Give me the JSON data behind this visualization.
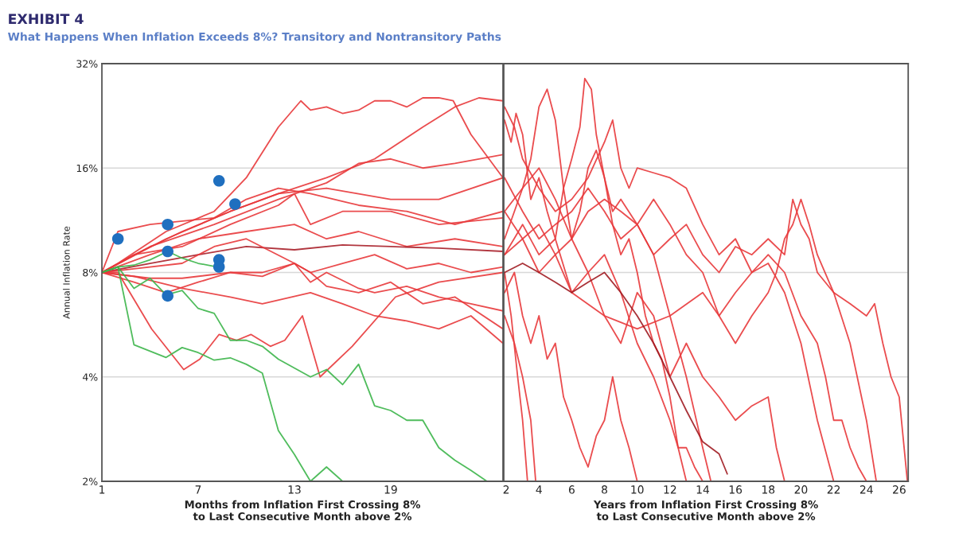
{
  "chart_data": [
    {
      "type": "line",
      "title": "EXHIBIT 4",
      "subtitle": "What Happens When Inflation Exceeds 8%? Transitory and Nontransitory Paths",
      "xlabel": "Months from Inflation First Crossing 8%\nto Last Consecutive Month above 2%",
      "ylabel": "Annual Inflation Rate",
      "log": "y",
      "grid": "y",
      "xlim": [
        1,
        26
      ],
      "xticks": [
        1,
        7,
        13,
        19
      ],
      "ylim": [
        2,
        32
      ],
      "yticks": [
        {
          "value": 2,
          "label": "2%"
        },
        {
          "value": 4,
          "label": "4%"
        },
        {
          "value": 8,
          "label": "8%"
        },
        {
          "value": 16,
          "label": "16%"
        },
        {
          "value": 32,
          "label": "32%"
        }
      ],
      "series": [
        {
          "color": "#e8383b",
          "x": [
            1,
            2,
            5,
            8,
            10,
            12,
            13.4,
            14,
            15,
            16,
            17,
            18,
            19,
            20,
            21,
            22,
            22.9,
            24,
            26
          ],
          "values": [
            8,
            8.5,
            10.5,
            12,
            15,
            21,
            25,
            23.5,
            24,
            23,
            23.5,
            25,
            25,
            24,
            25.5,
            25.5,
            25,
            20,
            15
          ]
        },
        {
          "color": "#e8383b",
          "x": [
            1,
            3,
            6,
            9,
            12,
            15,
            18,
            21,
            23,
            24.5,
            26
          ],
          "values": [
            8,
            9,
            10.5,
            12,
            13.5,
            15,
            17,
            21,
            24,
            25.5,
            25
          ]
        },
        {
          "color": "#e8383b",
          "x": [
            1,
            4,
            8,
            12,
            15,
            17,
            19,
            21,
            23,
            26
          ],
          "values": [
            8,
            9.5,
            11,
            13,
            14.5,
            16.5,
            17,
            16,
            16.5,
            17.5
          ]
        },
        {
          "color": "#e8383b",
          "x": [
            1,
            5,
            9,
            12,
            15,
            19,
            22,
            26
          ],
          "values": [
            8,
            10,
            12,
            13.5,
            14,
            13,
            13,
            15
          ]
        },
        {
          "color": "#e8383b",
          "x": [
            1,
            2,
            4,
            8,
            10,
            12,
            14,
            17,
            20,
            23,
            26
          ],
          "values": [
            8,
            10.5,
            11,
            11.5,
            13,
            14,
            13.5,
            12.5,
            12,
            11,
            12
          ]
        },
        {
          "color": "#e8383b",
          "x": [
            1,
            3,
            6,
            9,
            12,
            13,
            14,
            16,
            19,
            22,
            26
          ],
          "values": [
            8,
            9,
            9.5,
            11,
            12.5,
            13.5,
            11,
            12,
            12,
            11,
            11.5
          ]
        },
        {
          "color": "#e8383b",
          "x": [
            1,
            4,
            7,
            10,
            13,
            15,
            17,
            20,
            23,
            26
          ],
          "values": [
            8,
            9,
            10,
            10.5,
            11,
            10,
            10.5,
            9.5,
            10,
            9.5
          ]
        },
        {
          "color": "#a8202a",
          "x": [
            1,
            4,
            7,
            10,
            13,
            16,
            19,
            22,
            26
          ],
          "values": [
            8,
            8.5,
            9,
            9.5,
            9.3,
            9.6,
            9.5,
            9.4,
            9.2
          ]
        },
        {
          "color": "#e8383b",
          "x": [
            1,
            3,
            6,
            8,
            10,
            13,
            14,
            16,
            18,
            20,
            22,
            24,
            26
          ],
          "values": [
            8,
            8.2,
            8.5,
            9.5,
            10,
            8.5,
            8,
            8.5,
            9,
            8.2,
            8.5,
            8,
            8.3
          ]
        },
        {
          "color": "#e8383b",
          "x": [
            1,
            4,
            6,
            9,
            11,
            13,
            14,
            15,
            17,
            18,
            20,
            22,
            24,
            26
          ],
          "values": [
            8,
            7.7,
            7.7,
            8,
            8,
            8.5,
            7.5,
            8,
            7.2,
            7,
            7.3,
            6.8,
            6.5,
            6.2
          ]
        },
        {
          "color": "#e8383b",
          "x": [
            1,
            3,
            5,
            7,
            9,
            11,
            13,
            14,
            15,
            17,
            19,
            21,
            23,
            26
          ],
          "values": [
            8,
            7.5,
            7,
            7.5,
            8,
            7.8,
            8.5,
            8,
            7.3,
            7,
            7.5,
            6.5,
            6.8,
            5.5
          ]
        },
        {
          "color": "#e8383b",
          "x": [
            1,
            2,
            4.1,
            6.1,
            7.1,
            8.3,
            9.4,
            10.3,
            11.5,
            12.4,
            13.5,
            14.6,
            16.6,
            19.3,
            22,
            26
          ],
          "values": [
            8,
            8,
            5.5,
            4.2,
            4.5,
            5.3,
            5.1,
            5.3,
            4.9,
            5.1,
            6.0,
            4.0,
            4.9,
            6.8,
            7.5,
            8
          ]
        },
        {
          "color": "#e8383b",
          "x": [
            1,
            3,
            6,
            9,
            11,
            14,
            16,
            18,
            20,
            22,
            24,
            26
          ],
          "values": [
            8,
            7.8,
            7.2,
            6.8,
            6.5,
            7,
            6.5,
            6,
            5.8,
            5.5,
            6,
            5
          ]
        },
        {
          "color": "#3cb54a",
          "x": [
            1,
            2,
            3,
            4,
            5.1,
            6,
            7,
            8.2
          ],
          "values": [
            8,
            8.3,
            8.4,
            8.7,
            9.2,
            8.8,
            8.5,
            8.3
          ]
        },
        {
          "color": "#3cb54a",
          "x": [
            1,
            2,
            3,
            4,
            5,
            6,
            7,
            8,
            9,
            10,
            11,
            12,
            14,
            15,
            16,
            17,
            18,
            19,
            20,
            21,
            22,
            23,
            24,
            25
          ],
          "values": [
            8,
            8.3,
            7.2,
            7.7,
            6.9,
            7.1,
            6.3,
            6.1,
            5.1,
            5.1,
            4.9,
            4.5,
            4.0,
            4.2,
            3.8,
            4.35,
            3.3,
            3.2,
            3.0,
            3.0,
            2.5,
            2.3,
            2.15,
            2.0
          ]
        },
        {
          "color": "#3cb54a",
          "x": [
            1,
            2,
            3,
            5,
            6,
            7,
            8,
            9,
            10,
            11,
            12,
            13,
            14,
            15,
            16
          ],
          "values": [
            8,
            8.3,
            4.95,
            4.55,
            4.86,
            4.7,
            4.47,
            4.54,
            4.35,
            4.1,
            2.8,
            2.39,
            2.0,
            2.2,
            2.0
          ]
        },
        {
          "type": "scatter",
          "marker": "circle",
          "color": "#1f6fbf",
          "x": [
            2,
            5.1,
            5.1,
            5.1,
            8.3,
            9.3,
            8.3,
            8.3
          ],
          "values": [
            10.0,
            11.0,
            9.2,
            6.85,
            14.7,
            12.6,
            8.7,
            8.3
          ]
        }
      ]
    },
    {
      "type": "line",
      "xlabel": "Years from Inflation First Crossing 8%\nto Last Consecutive Month above 2%",
      "log": "y",
      "grid": "y",
      "tick_labels": "x",
      "xlim": [
        1.85,
        26.55
      ],
      "xticks": [
        2,
        4,
        6,
        8,
        10,
        12,
        14,
        16,
        18,
        20,
        22,
        24,
        26
      ],
      "ylim": [
        2,
        32
      ],
      "yticks": [
        {
          "value": 2,
          "label": null
        },
        {
          "value": 4,
          "label": null
        },
        {
          "value": 8,
          "label": null
        },
        {
          "value": 16,
          "label": null
        },
        {
          "value": 32,
          "label": null
        }
      ],
      "series": [
        {
          "color": "#e8383b",
          "x": [
            1.9,
            2.3,
            2.6,
            3,
            3.5,
            4,
            4.5,
            5,
            5.5,
            6,
            6.5,
            6.8,
            7.2,
            7.5,
            8,
            8.5,
            9,
            9.5,
            10,
            10.5,
            11,
            11.5,
            12,
            12.5,
            13
          ],
          "values": [
            22,
            19,
            23,
            20,
            13,
            15,
            12,
            10,
            14,
            17,
            21,
            29,
            27,
            20,
            15,
            11,
            9,
            10,
            8,
            6,
            5,
            4.5,
            3.5,
            2.5,
            2.0
          ]
        },
        {
          "color": "#e8383b",
          "x": [
            1.9,
            2.5,
            3,
            3.5,
            4,
            4.5,
            5,
            5.5,
            6,
            6.5,
            7,
            7.5,
            8,
            8.5,
            9,
            10,
            11,
            12,
            13,
            14,
            14.5
          ],
          "values": [
            10,
            12,
            14,
            17,
            24,
            27,
            22,
            14,
            10,
            12,
            16,
            18,
            15,
            12,
            13,
            11,
            9,
            6,
            4,
            2.5,
            2.0
          ]
        },
        {
          "color": "#e8383b",
          "x": [
            1.9,
            2.5,
            3,
            4,
            5,
            6,
            7,
            8,
            8.5,
            9,
            9.5,
            10,
            11,
            12,
            13,
            14,
            15,
            16,
            17,
            18,
            19,
            20,
            21,
            22
          ],
          "values": [
            24,
            21,
            17,
            14,
            12,
            13,
            15,
            19,
            22,
            16,
            14,
            16,
            15.5,
            15,
            14,
            11,
            9,
            10,
            8,
            8.5,
            7,
            5,
            3,
            2.0
          ]
        },
        {
          "color": "#e8383b",
          "x": [
            1.9,
            3,
            4,
            5,
            6,
            7,
            8,
            9,
            10,
            11,
            12,
            13,
            14,
            15,
            16,
            17,
            18,
            19,
            19.5,
            20,
            20.5,
            21,
            22,
            23,
            24,
            24.5,
            25,
            25.5,
            26,
            26.5
          ],
          "values": [
            9,
            10,
            11,
            9,
            10,
            12,
            13,
            12,
            11,
            9,
            10,
            11,
            9,
            8,
            9.5,
            9,
            10,
            9,
            13,
            11,
            10,
            8,
            7,
            6.5,
            6,
            6.5,
            5,
            4,
            3.5,
            2.0
          ]
        },
        {
          "color": "#e8383b",
          "x": [
            1.9,
            3,
            4,
            5,
            6,
            8,
            10,
            12,
            14,
            15,
            16,
            17,
            18,
            18.5,
            19,
            19.5,
            20,
            20.5,
            21,
            22,
            23,
            24,
            24.6
          ],
          "values": [
            12,
            10,
            8,
            9,
            7,
            6,
            5.5,
            6,
            7,
            6,
            5,
            6,
            7,
            8,
            10,
            11,
            13,
            11,
            9,
            7,
            5,
            3,
            2.0
          ]
        },
        {
          "color": "#e8383b",
          "x": [
            1.9,
            2.3,
            2.7,
            3,
            3.3
          ],
          "values": [
            8,
            6,
            4,
            3,
            2.0
          ]
        },
        {
          "color": "#e8383b",
          "x": [
            1.9,
            2.5,
            3,
            3.5,
            4,
            4.5,
            5,
            5.5,
            6,
            6.5,
            7,
            7.5,
            8,
            8.5,
            9,
            9.5,
            10
          ],
          "values": [
            7,
            8,
            6,
            5,
            6,
            4.5,
            5,
            3.5,
            3,
            2.5,
            2.2,
            2.7,
            3,
            4,
            3,
            2.5,
            2.0
          ]
        },
        {
          "color": "#e8383b",
          "x": [
            1.9,
            2.5,
            3,
            3.5,
            3.8
          ],
          "values": [
            6,
            5,
            4,
            3,
            2.0
          ]
        },
        {
          "color": "#e8383b",
          "x": [
            1.9,
            3,
            4,
            5,
            6,
            7,
            8,
            9,
            10,
            11,
            12,
            13,
            14,
            15,
            16,
            17,
            18,
            18.5,
            19
          ],
          "values": [
            9,
            11,
            9,
            10,
            7,
            8,
            6,
            5,
            7,
            6,
            4,
            5,
            4,
            3.5,
            3,
            3.3,
            3.5,
            2.5,
            2.0
          ]
        },
        {
          "color": "#e8383b",
          "x": [
            1.9,
            3,
            4,
            5,
            6,
            7,
            8,
            9,
            10,
            11,
            12,
            13,
            14,
            15,
            16,
            17,
            18,
            19,
            20,
            21,
            21.5,
            22,
            22.5,
            23,
            23.5,
            24
          ],
          "values": [
            15,
            12,
            10,
            11,
            12,
            14,
            12,
            10,
            11,
            13,
            11,
            9,
            8,
            6,
            7,
            8,
            9,
            8,
            6,
            5,
            4,
            3,
            3,
            2.5,
            2.2,
            2.0
          ]
        },
        {
          "color": "#e8383b",
          "x": [
            1.9,
            3,
            4,
            5,
            6,
            7,
            8,
            9,
            10,
            11,
            12,
            12.5,
            13,
            13.5,
            14
          ],
          "values": [
            12,
            14,
            16,
            13,
            10,
            8,
            9,
            7,
            5,
            4,
            3,
            2.5,
            2.5,
            2.2,
            2.0
          ]
        },
        {
          "color": "#a01c22",
          "x": [
            1.9,
            3,
            4,
            5,
            6,
            7,
            8,
            9,
            10,
            11,
            12,
            13,
            14,
            15,
            15.5
          ],
          "values": [
            8,
            8.5,
            8,
            7.5,
            7,
            7.5,
            8,
            7,
            6,
            5,
            4,
            3.2,
            2.6,
            2.4,
            2.1
          ]
        }
      ]
    }
  ]
}
